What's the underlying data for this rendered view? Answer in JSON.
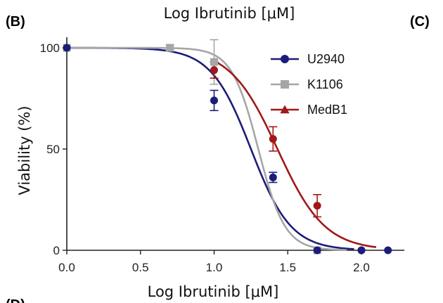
{
  "panels": {
    "left_label": "(B)",
    "right_label": "(C)",
    "bottom_label": "(D)",
    "top_title": "Log Ibrutinib [μM]"
  },
  "chart_data": {
    "type": "scatter",
    "xlabel": "Log Ibrutinib [μM]",
    "ylabel": "Viability (%)",
    "xlim": [
      0,
      2.25
    ],
    "ylim": [
      0,
      105
    ],
    "x_ticks": [
      0.0,
      0.5,
      1.0,
      1.5,
      2.0
    ],
    "x_tick_labels": [
      "0.0",
      "0.5",
      "1.0",
      "1.5",
      "2.0"
    ],
    "y_ticks": [
      0,
      50,
      100
    ],
    "y_tick_labels": [
      "0",
      "50",
      "100"
    ],
    "grid": false,
    "legend_position": "top-right",
    "series": [
      {
        "name": "U2940",
        "color": "#1c1c7a",
        "marker": "circle",
        "points": [
          {
            "x": 0.0,
            "y": 100,
            "err": 0
          },
          {
            "x": 1.0,
            "y": 74,
            "err": 5
          },
          {
            "x": 1.4,
            "y": 36,
            "err": 2.5
          },
          {
            "x": 1.7,
            "y": 0,
            "err": 0
          },
          {
            "x": 2.0,
            "y": 0,
            "err": 0
          },
          {
            "x": 2.18,
            "y": 0,
            "err": 0
          }
        ],
        "fit": {
          "top": 100,
          "bottom": 0,
          "logIC50": 1.25,
          "hill": -3.2
        }
      },
      {
        "name": "K1106",
        "color": "#a6a6a6",
        "marker": "square",
        "points": [
          {
            "x": 0.0,
            "y": 100,
            "err": 0
          },
          {
            "x": 0.7,
            "y": 100,
            "err": 1.5
          },
          {
            "x": 1.0,
            "y": 93,
            "err": 11
          },
          {
            "x": 1.7,
            "y": 0,
            "err": 0
          }
        ],
        "fit": {
          "top": 100,
          "bottom": 0,
          "logIC50": 1.3,
          "hill": -4.8
        }
      },
      {
        "name": "MedB1",
        "color": "#a01818",
        "marker": "triangle",
        "points": [
          {
            "x": 1.0,
            "y": 89,
            "err": 4
          },
          {
            "x": 1.4,
            "y": 55,
            "err": 6
          },
          {
            "x": 1.7,
            "y": 22,
            "err": 5.5
          },
          {
            "x": 2.0,
            "y": 0,
            "err": 0
          }
        ],
        "fit": {
          "top": 100,
          "bottom": 0,
          "logIC50": 1.43,
          "hill": -2.7
        }
      }
    ]
  }
}
